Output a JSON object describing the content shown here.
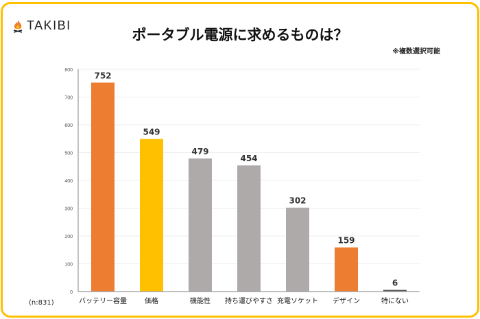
{
  "brand": {
    "name": "TAKIBI",
    "icon": "campfire-icon"
  },
  "note": "※複数選択可能",
  "sample_size": "(n:831)",
  "colors": {
    "frame": "#FFC000",
    "orange": "#ED7D31",
    "yellow": "#FFC000",
    "gray": "#AEAAAA",
    "dark": "#595959"
  },
  "chart_data": {
    "type": "bar",
    "title": "ポータブル電源に求めるものは？",
    "categories": [
      "バッテリー容量",
      "価格",
      "機能性",
      "持ち運びやすさ",
      "充電ソケット",
      "デザイン",
      "特にない"
    ],
    "values": [
      752,
      549,
      479,
      454,
      302,
      159,
      6
    ],
    "bar_colors": [
      "#ED7D31",
      "#FFC000",
      "#AEAAAA",
      "#AEAAAA",
      "#AEAAAA",
      "#ED7D31",
      "#595959"
    ],
    "xlabel": "",
    "ylabel": "",
    "ylim": [
      0,
      800
    ],
    "yticks": [
      0,
      100,
      200,
      300,
      400,
      500,
      600,
      700,
      800
    ],
    "grid": true,
    "data_labels": true
  }
}
